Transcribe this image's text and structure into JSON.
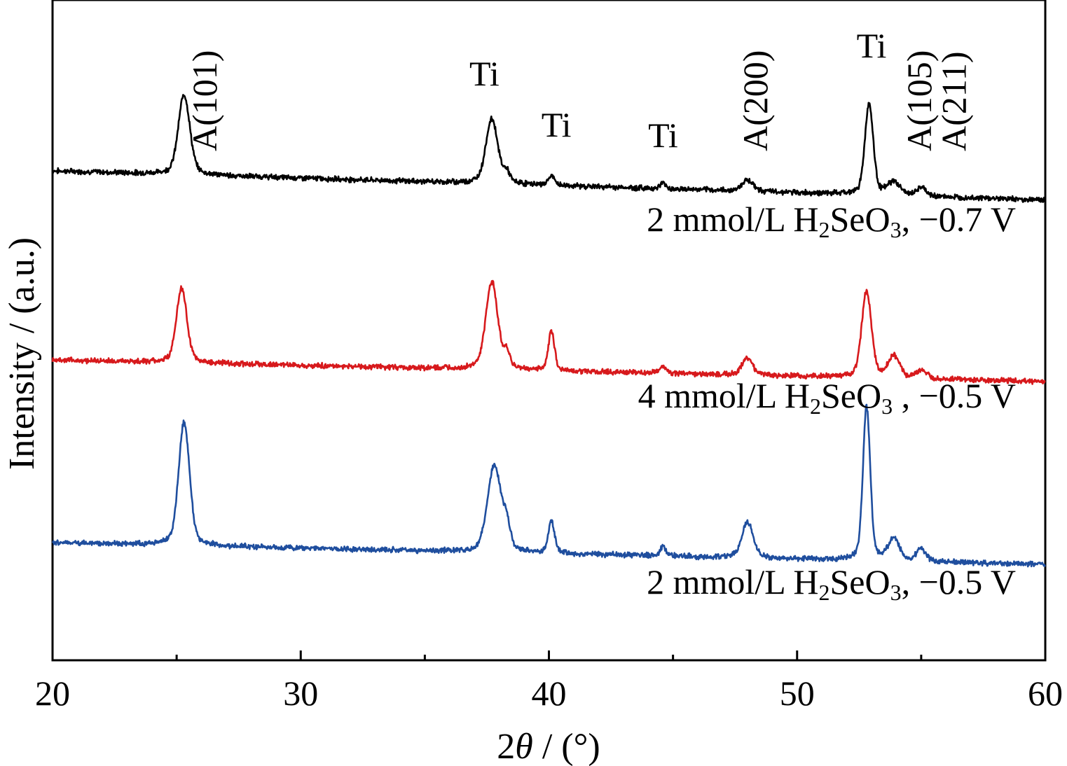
{
  "chart_data": {
    "type": "line",
    "xlabel": "2θ / (°)",
    "ylabel": "Intensity / (a.u.)",
    "xlim": [
      20,
      60
    ],
    "xticks": [
      20,
      30,
      40,
      50,
      60
    ],
    "xtick_labels": [
      "20",
      "30",
      "40",
      "50",
      "60"
    ],
    "yticks_shown": false,
    "grid": false,
    "legend": "none",
    "peak_labels": [
      {
        "text": "A(101)",
        "x": 26.6,
        "orientation": "vertical"
      },
      {
        "text": "Ti",
        "x": 37.4,
        "orientation": "horizontal"
      },
      {
        "text": "Ti",
        "x": 40.3,
        "orientation": "horizontal"
      },
      {
        "text": "Ti",
        "x": 44.6,
        "orientation": "horizontal"
      },
      {
        "text": "A(200)",
        "x": 48.8,
        "orientation": "vertical"
      },
      {
        "text": "Ti",
        "x": 53.0,
        "orientation": "horizontal"
      },
      {
        "text": "A(105)",
        "x": 55.4,
        "orientation": "vertical"
      },
      {
        "text": "A(211)",
        "x": 56.8,
        "orientation": "vertical"
      }
    ],
    "series": [
      {
        "label_parts": [
          "2 mmol/L H",
          "2",
          "SeO",
          "3",
          ", −0.7 V"
        ],
        "color": "#000000",
        "baseline": 6.05,
        "slope": -0.004,
        "noise": 0.035,
        "peaks": [
          {
            "x": 25.3,
            "h": 4.4,
            "w": 0.22
          },
          {
            "x": 37.7,
            "h": 3.55,
            "w": 0.23
          },
          {
            "x": 38.3,
            "h": 0.55,
            "w": 0.12
          },
          {
            "x": 40.1,
            "h": 0.5,
            "w": 0.12
          },
          {
            "x": 44.6,
            "h": 0.32,
            "w": 0.1
          },
          {
            "x": 48.0,
            "h": 0.62,
            "w": 0.22
          },
          {
            "x": 52.9,
            "h": 5.0,
            "w": 0.16
          },
          {
            "x": 53.9,
            "h": 0.7,
            "w": 0.25
          },
          {
            "x": 55.0,
            "h": 0.45,
            "w": 0.18
          }
        ]
      },
      {
        "label_parts": [
          "4 mmol/L H",
          "2",
          "SeO",
          "3",
          " , −0.5 V"
        ],
        "color": "#d7191c",
        "baseline": 2.9,
        "slope": -0.003,
        "noise": 0.035,
        "peaks": [
          {
            "x": 25.2,
            "h": 4.1,
            "w": 0.2
          },
          {
            "x": 37.7,
            "h": 4.8,
            "w": 0.23
          },
          {
            "x": 38.3,
            "h": 0.8,
            "w": 0.12
          },
          {
            "x": 40.1,
            "h": 2.15,
            "w": 0.12
          },
          {
            "x": 44.6,
            "h": 0.35,
            "w": 0.12
          },
          {
            "x": 48.0,
            "h": 0.95,
            "w": 0.2
          },
          {
            "x": 52.8,
            "h": 4.7,
            "w": 0.19
          },
          {
            "x": 53.9,
            "h": 1.2,
            "w": 0.22
          },
          {
            "x": 55.0,
            "h": 0.45,
            "w": 0.2
          }
        ]
      },
      {
        "label_parts": [
          "2 mmol/L  H",
          "2",
          "SeO",
          "3",
          ", −0.5 V"
        ],
        "color": "#1f4e9e",
        "baseline": 0.0,
        "slope": -0.003,
        "noise": 0.035,
        "peaks": [
          {
            "x": 25.3,
            "h": 6.75,
            "w": 0.21
          },
          {
            "x": 37.8,
            "h": 4.75,
            "w": 0.26
          },
          {
            "x": 38.3,
            "h": 1.2,
            "w": 0.14
          },
          {
            "x": 40.1,
            "h": 1.75,
            "w": 0.12
          },
          {
            "x": 44.6,
            "h": 0.5,
            "w": 0.11
          },
          {
            "x": 48.0,
            "h": 1.95,
            "w": 0.22
          },
          {
            "x": 52.8,
            "h": 8.4,
            "w": 0.14
          },
          {
            "x": 53.9,
            "h": 1.2,
            "w": 0.22
          },
          {
            "x": 55.0,
            "h": 0.7,
            "w": 0.18
          }
        ]
      }
    ]
  }
}
